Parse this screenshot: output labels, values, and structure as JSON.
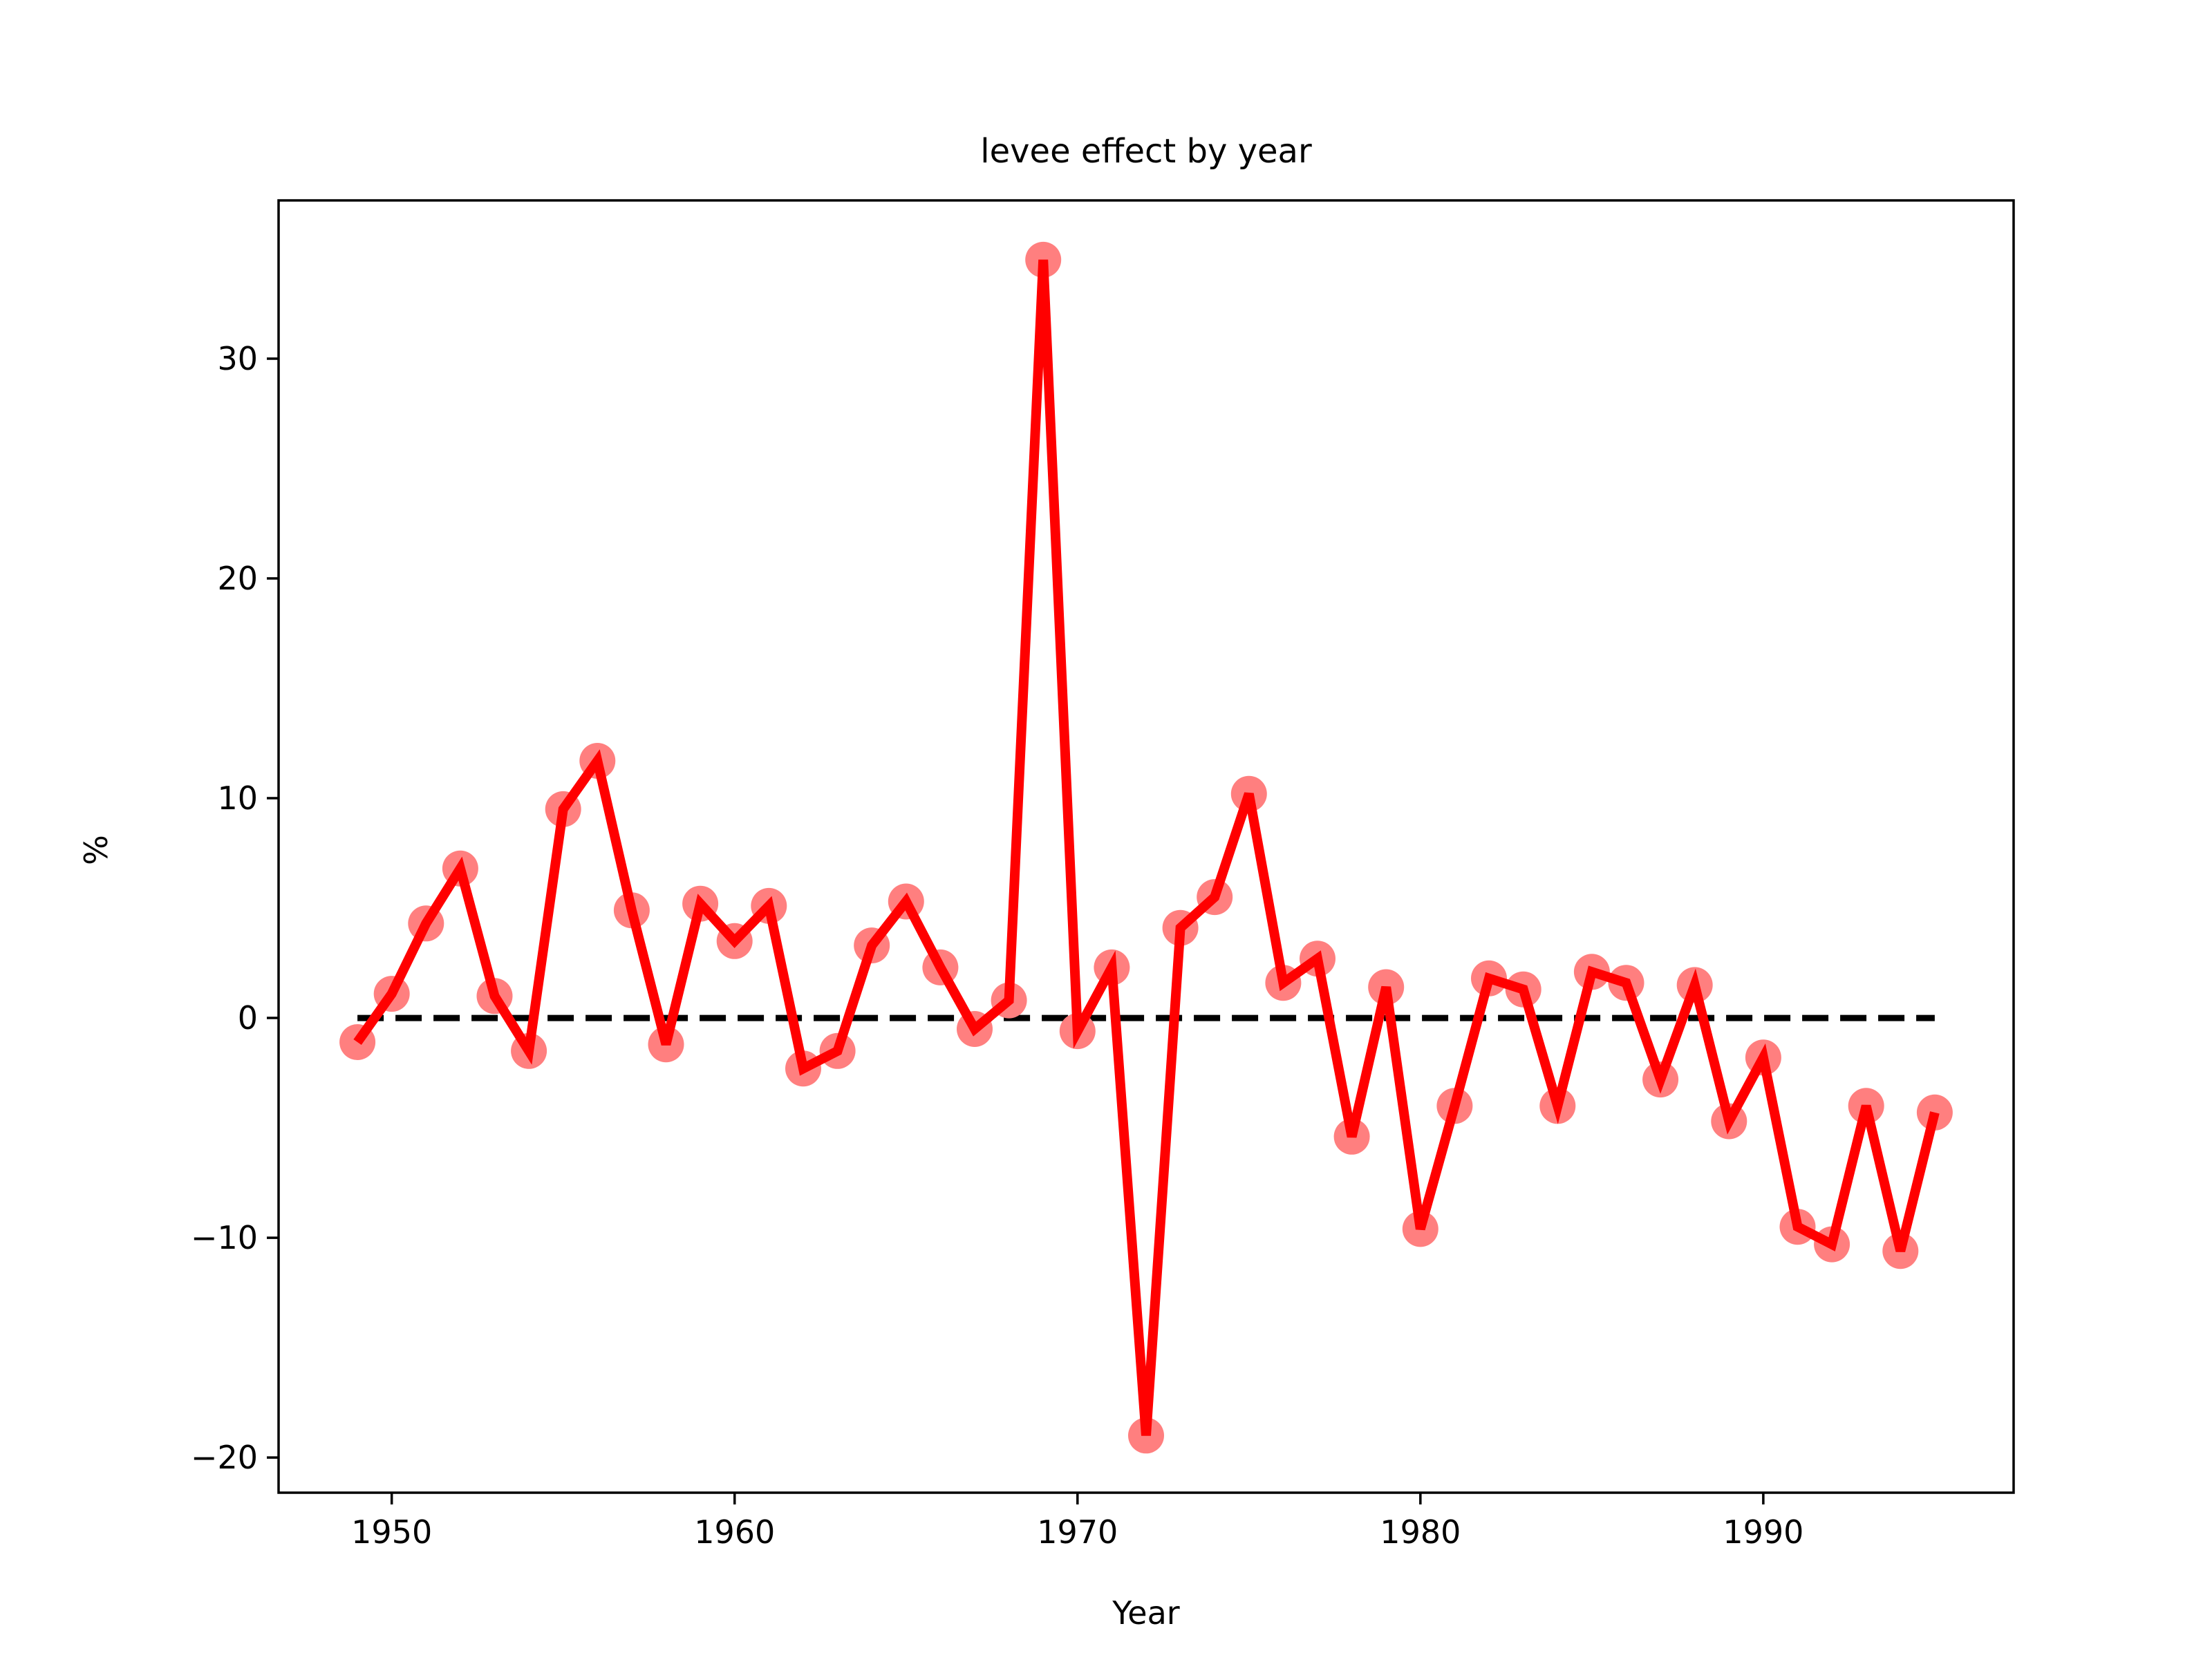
{
  "chart_data": {
    "type": "line",
    "title": "levee effect by year",
    "xlabel": "Year",
    "ylabel": "%",
    "xlim": [
      1946.7,
      1997.3
    ],
    "ylim": [
      -21.6,
      37.2
    ],
    "xticks": [
      1950,
      1960,
      1970,
      1980,
      1990
    ],
    "yticks": [
      -20,
      -10,
      0,
      10,
      20,
      30
    ],
    "xtick_labels": [
      "1950",
      "1960",
      "1970",
      "1980",
      "1990"
    ],
    "ytick_labels": [
      "−20",
      "−10",
      "0",
      "10",
      "20",
      "30"
    ],
    "grid": false,
    "legend": false,
    "colors": {
      "series_line": "#ff0000",
      "series_markers": "#ff7f7f",
      "reference_line": "#000000"
    },
    "x": [
      1949,
      1950,
      1951,
      1952,
      1953,
      1954,
      1955,
      1956,
      1957,
      1958,
      1959,
      1960,
      1961,
      1962,
      1963,
      1964,
      1965,
      1966,
      1967,
      1968,
      1969,
      1970,
      1971,
      1972,
      1973,
      1974,
      1975,
      1976,
      1977,
      1978,
      1979,
      1980,
      1981,
      1982,
      1983,
      1984,
      1985,
      1986,
      1987,
      1988,
      1989,
      1990,
      1991,
      1992,
      1993,
      1994,
      1995
    ],
    "series": [
      {
        "values": [
          -1.1,
          1.1,
          4.3,
          6.8,
          1.0,
          -1.5,
          9.5,
          11.7,
          4.9,
          -1.2,
          5.2,
          3.5,
          5.1,
          -2.3,
          -1.5,
          3.3,
          5.3,
          2.3,
          -0.5,
          0.8,
          34.5,
          -0.6,
          2.3,
          -19.0,
          4.1,
          5.5,
          10.2,
          1.6,
          2.7,
          -5.4,
          1.4,
          -9.6,
          -4.0,
          1.8,
          1.3,
          -4.0,
          2.1,
          1.6,
          -2.8,
          1.5,
          -4.7,
          -1.8,
          -9.5,
          -10.3,
          -4.0,
          -10.6,
          -4.3
        ]
      },
      {
        "values": [
          0,
          0,
          0,
          0,
          0,
          0,
          0,
          0,
          0,
          0,
          0,
          0,
          0,
          0,
          0,
          0,
          0,
          0,
          0,
          0,
          0,
          0,
          0,
          0,
          0,
          0,
          0,
          0,
          0,
          0,
          0,
          0,
          0,
          0,
          0,
          0,
          0,
          0,
          0,
          0,
          0,
          0,
          0,
          0,
          0,
          0,
          0
        ]
      }
    ]
  }
}
